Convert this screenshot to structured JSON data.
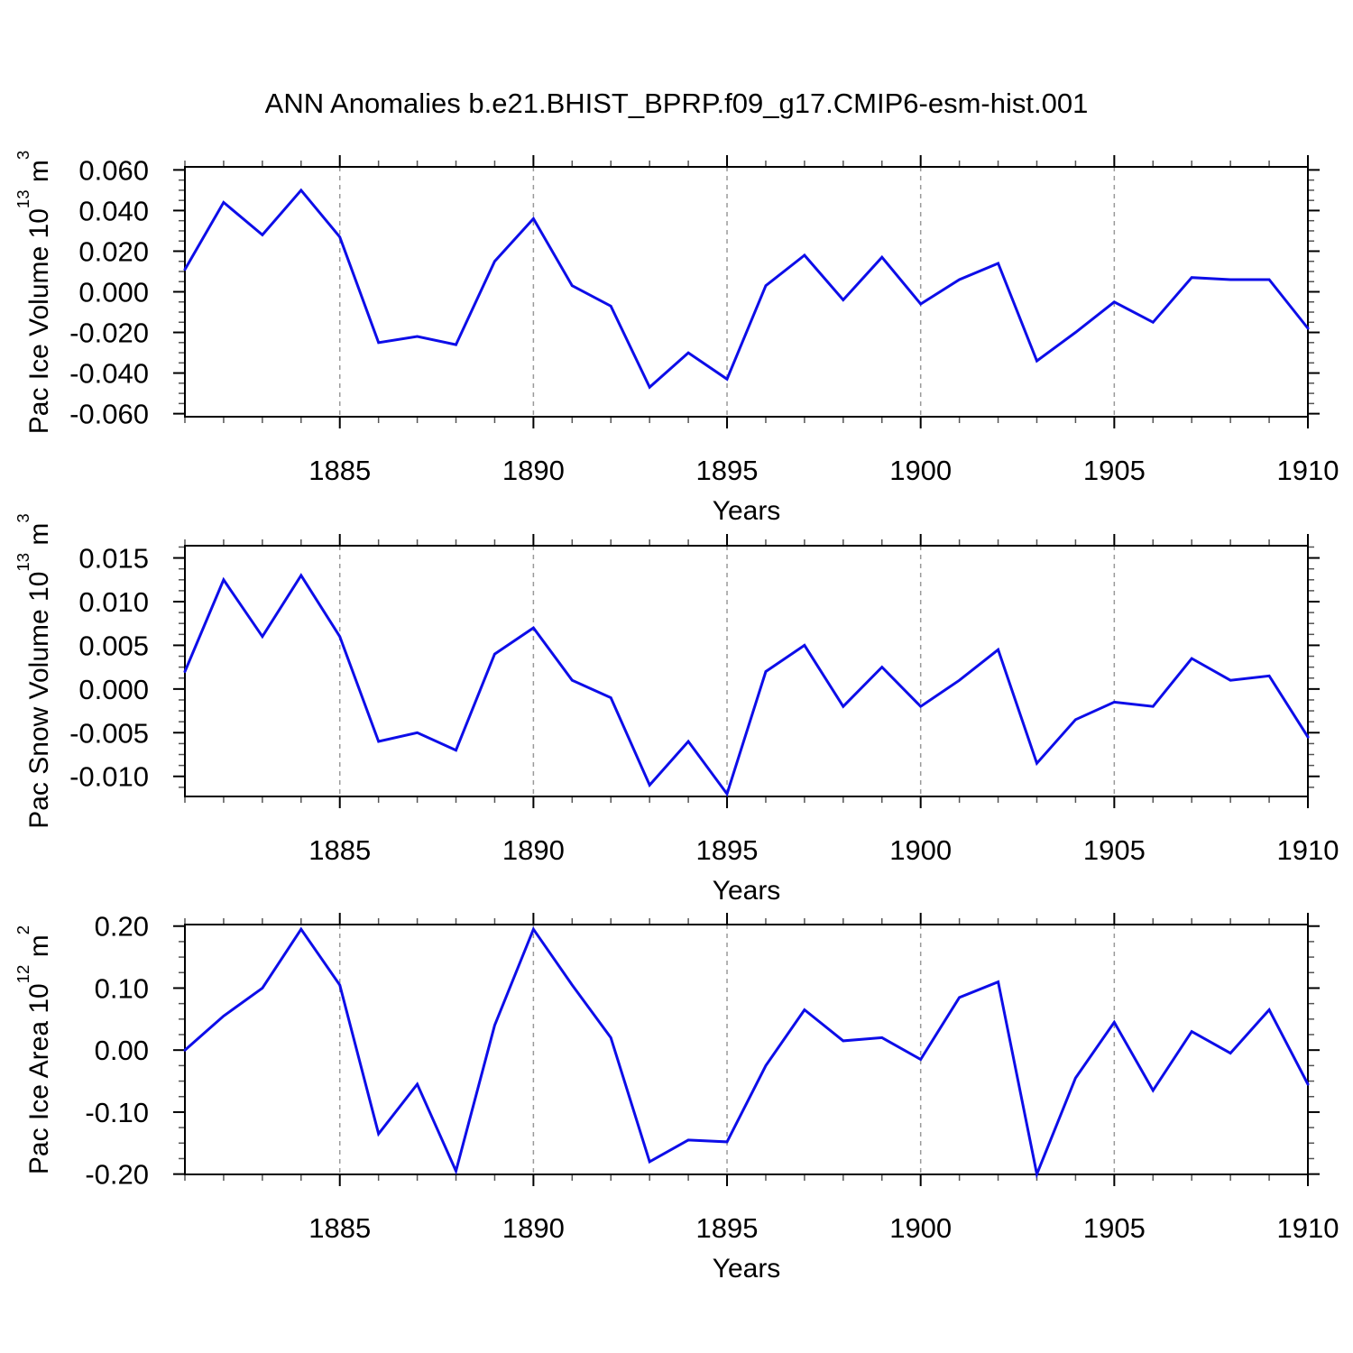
{
  "title": "ANN Anomalies b.e21.BHIST_BPRP.f09_g17.CMIP6-esm-hist.001",
  "ylabel_parts": [
    {
      "base": "Pac Ice Volume 10",
      "exp": "13",
      "unit": " m",
      "unit_exp": "3"
    },
    {
      "base": "Pac Snow Volume 10",
      "exp": "13",
      "unit": " m",
      "unit_exp": "3"
    },
    {
      "base": "Pac Ice Area 10",
      "exp": "12",
      "unit": " m",
      "unit_exp": "2"
    }
  ],
  "chart_data": {
    "type": "line",
    "title": "ANN Anomalies b.e21.BHIST_BPRP.f09_g17.CMIP6-esm-hist.001",
    "xlabel": "Years",
    "x": [
      1881,
      1882,
      1883,
      1884,
      1885,
      1886,
      1887,
      1888,
      1889,
      1890,
      1891,
      1892,
      1893,
      1894,
      1895,
      1896,
      1897,
      1898,
      1899,
      1900,
      1901,
      1902,
      1903,
      1904,
      1905,
      1906,
      1907,
      1908,
      1909,
      1910
    ],
    "xlim": [
      1881,
      1910
    ],
    "x_major_years": [
      1885,
      1890,
      1895,
      1900,
      1905,
      1910
    ],
    "x_gridline_years": [
      1885,
      1890,
      1895,
      1900,
      1905
    ],
    "grid": "vertical-dashed",
    "legend": "none",
    "line_color": "#0d0de8",
    "panels": [
      {
        "name": "pac-ice-volume",
        "ylabel": "Pac Ice Volume 10^13 m^3",
        "ylim": [
          -0.0615,
          0.0615
        ],
        "y_major_values": [
          0.06,
          0.04,
          0.02,
          0.0,
          -0.02,
          -0.04,
          -0.06
        ],
        "ytick_labels": [
          "0.060",
          "0.040",
          "0.020",
          "0.000",
          "-0.020",
          "-0.040",
          "-0.060"
        ],
        "y_minor_step": 0.005,
        "values": [
          0.011,
          0.044,
          0.028,
          0.05,
          0.027,
          -0.025,
          -0.022,
          -0.026,
          0.015,
          0.036,
          0.003,
          -0.007,
          -0.047,
          -0.03,
          -0.043,
          0.003,
          0.018,
          -0.004,
          0.017,
          -0.006,
          0.006,
          0.014,
          -0.034,
          -0.02,
          -0.005,
          -0.015,
          0.007,
          0.006,
          0.006,
          -0.018
        ]
      },
      {
        "name": "pac-snow-volume",
        "ylabel": "Pac Snow Volume 10^13 m^3",
        "ylim": [
          -0.0123,
          0.0164
        ],
        "y_major_values": [
          0.015,
          0.01,
          0.005,
          0.0,
          -0.005,
          -0.01
        ],
        "ytick_labels": [
          "0.015",
          "0.010",
          "0.005",
          "0.000",
          "-0.005",
          "-0.010"
        ],
        "y_minor_step": 0.00125,
        "values": [
          0.002,
          0.0125,
          0.006,
          0.013,
          0.006,
          -0.006,
          -0.005,
          -0.007,
          0.004,
          0.007,
          0.001,
          -0.001,
          -0.011,
          -0.006,
          -0.012,
          0.002,
          0.005,
          -0.002,
          0.0025,
          -0.002,
          0.001,
          0.0045,
          -0.0085,
          -0.0035,
          -0.0015,
          -0.002,
          0.0035,
          0.001,
          0.0015,
          -0.0055
        ]
      },
      {
        "name": "pac-ice-area",
        "ylabel": "Pac Ice Area 10^12 m^2",
        "ylim": [
          -0.2005,
          0.2025
        ],
        "y_major_values": [
          0.2,
          0.1,
          0.0,
          -0.1,
          -0.2
        ],
        "ytick_labels": [
          "0.20",
          "0.10",
          "0.00",
          "-0.10",
          "-0.20"
        ],
        "y_minor_step": 0.025,
        "values": [
          0.0,
          0.055,
          0.1,
          0.195,
          0.105,
          -0.135,
          -0.055,
          -0.195,
          0.04,
          0.195,
          0.105,
          0.02,
          -0.18,
          -0.145,
          -0.148,
          -0.025,
          0.065,
          0.015,
          0.02,
          -0.015,
          0.085,
          0.11,
          -0.2,
          -0.045,
          0.045,
          -0.065,
          0.03,
          -0.005,
          0.065,
          -0.055
        ]
      }
    ]
  }
}
